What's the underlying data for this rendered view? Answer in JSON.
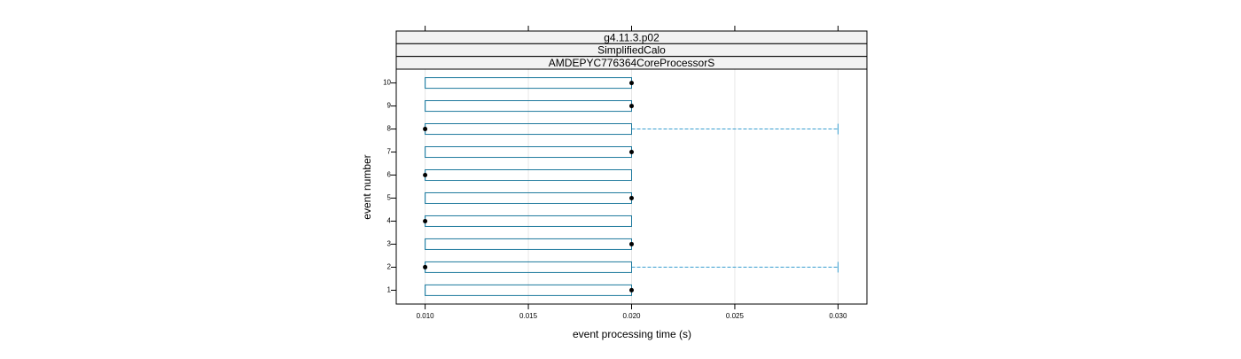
{
  "chart_data": {
    "type": "box",
    "strips": [
      "g4.11.3.p02",
      "SimplifiedCalo",
      "AMDEPYC776364CoreProcessorS"
    ],
    "xlabel": "event processing time (s)",
    "ylabel": "event number",
    "categories": [
      "1",
      "2",
      "3",
      "4",
      "5",
      "6",
      "7",
      "8",
      "9",
      "10"
    ],
    "min": [
      0.01,
      0.01,
      0.01,
      0.01,
      0.01,
      0.01,
      0.01,
      0.01,
      0.01,
      0.01
    ],
    "q1": [
      0.01,
      0.01,
      0.01,
      0.01,
      0.01,
      0.01,
      0.01,
      0.01,
      0.01,
      0.01
    ],
    "median": [
      0.02,
      0.01,
      0.02,
      0.01,
      0.02,
      0.01,
      0.02,
      0.01,
      0.02,
      0.02
    ],
    "q3": [
      0.02,
      0.02,
      0.02,
      0.02,
      0.02,
      0.02,
      0.02,
      0.02,
      0.02,
      0.02
    ],
    "max": [
      0.02,
      0.03,
      0.02,
      0.02,
      0.02,
      0.02,
      0.02,
      0.03,
      0.02,
      0.02
    ],
    "xlim": [
      0.0086,
      0.0314
    ],
    "xticks": [
      {
        "value": 0.01,
        "label": "0.010"
      },
      0.015,
      {
        "value": 0.02,
        "label": "0.020"
      },
      0.025,
      {
        "value": 0.03,
        "label": "0.030"
      }
    ],
    "grid": true,
    "box_color": "#1f7a9e",
    "whisker_color": "#3a9fd0",
    "median_color": "#000000",
    "strip_color": "#f2f2f2"
  }
}
